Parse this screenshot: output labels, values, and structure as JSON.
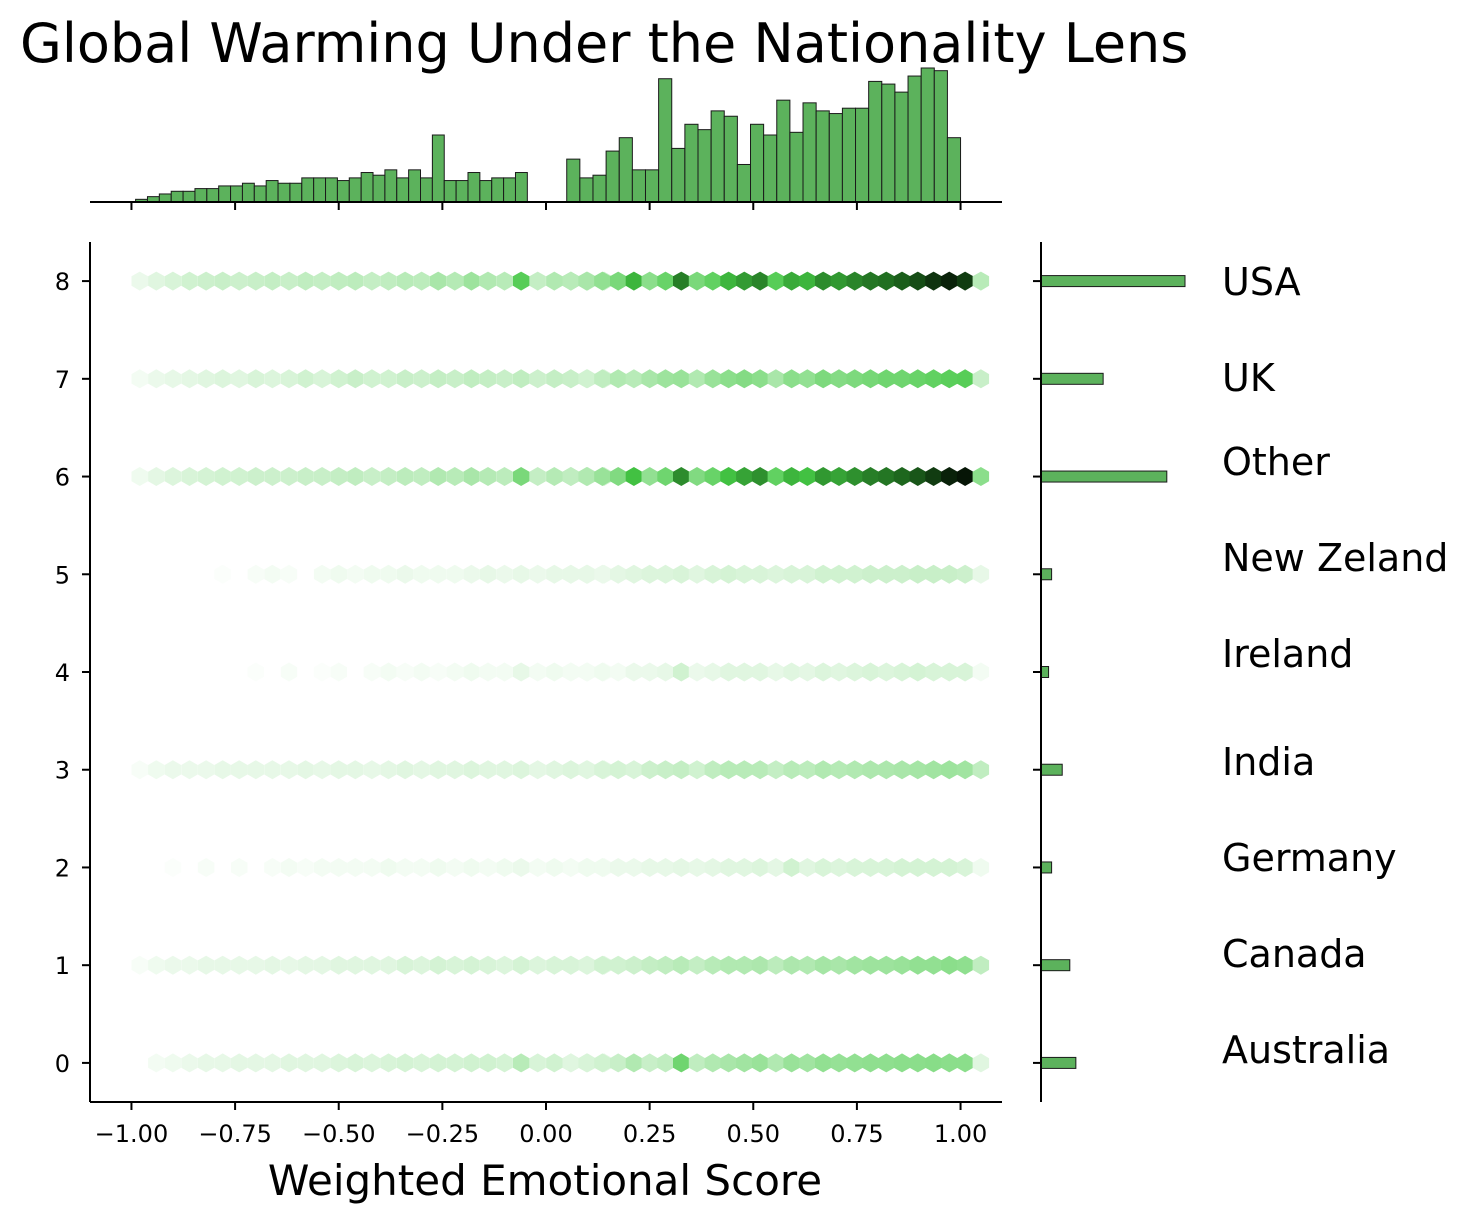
{
  "chart_data": {
    "type": "heatmap",
    "subtype": "jointplot-hexbin",
    "title": "Global Warming Under the Nationality Lens",
    "xlabel": "Weighted Emotional Score",
    "ylabel": "",
    "xlim": [
      -1.1,
      1.1
    ],
    "ylim": [
      -0.4,
      8.4
    ],
    "x_ticks": [
      -1.0,
      -0.75,
      -0.5,
      -0.25,
      0.0,
      0.25,
      0.5,
      0.75,
      1.0
    ],
    "x_tick_labels": [
      "−1.00",
      "−0.75",
      "−0.50",
      "−0.25",
      "0.00",
      "0.25",
      "0.50",
      "0.75",
      "1.00"
    ],
    "y_ticks": [
      0,
      1,
      2,
      3,
      4,
      5,
      6,
      7,
      8
    ],
    "y_tick_labels": [
      "0",
      "1",
      "2",
      "3",
      "4",
      "5",
      "6",
      "7",
      "8"
    ],
    "categories": [
      "Australia",
      "Canada",
      "Germany",
      "India",
      "Ireland",
      "New Zeland",
      "Other",
      "UK",
      "USA"
    ],
    "bar_color": "#5cb25c",
    "hex_color_scale": [
      "#ffffff",
      "#9de39d",
      "#45c845",
      "#1f6b1f",
      "#000000"
    ],
    "top_histogram": {
      "bins_negative": {
        "start": -0.99,
        "end": -0.045,
        "counts": [
          1,
          2,
          3,
          4,
          4,
          5,
          5,
          6,
          6,
          7,
          6,
          8,
          7,
          7,
          9,
          9,
          9,
          8,
          9,
          11,
          10,
          12,
          9,
          12,
          9,
          25,
          8,
          8,
          11,
          8,
          9,
          9,
          11
        ]
      },
      "bins_positive": {
        "start": 0.05,
        "end": 1.0,
        "counts": [
          16,
          9,
          10,
          19,
          24,
          12,
          12,
          46,
          20,
          29,
          27,
          34,
          32,
          14,
          29,
          25,
          38,
          26,
          37,
          34,
          33,
          35,
          35,
          45,
          44,
          41,
          47,
          50,
          49,
          24
        ]
      }
    },
    "right_histogram": {
      "categories": [
        "Australia",
        "Canada",
        "Germany",
        "India",
        "Ireland",
        "New Zeland",
        "Other",
        "UK",
        "USA"
      ],
      "values": [
        23,
        19,
        7,
        14,
        5,
        7,
        83,
        41,
        95
      ]
    },
    "hexbins": {
      "x_start": -0.98,
      "x_step": 0.04,
      "rows": [
        {
          "y": 8,
          "neg": [
            0.05,
            0.08,
            0.1,
            0.12,
            0.13,
            0.14,
            0.13,
            0.14,
            0.15,
            0.14,
            0.16,
            0.15,
            0.16,
            0.17,
            0.15,
            0.16,
            0.18,
            0.17,
            0.22,
            0.19,
            0.25,
            0.2,
            0.18,
            0.45,
            0.15,
            0.2,
            0.25,
            0.18,
            0.14
          ],
          "pos": [
            0.18,
            0.22,
            0.28,
            0.35,
            0.55,
            0.3,
            0.4,
            0.7,
            0.35,
            0.42,
            0.55,
            0.62,
            0.68,
            0.45,
            0.58,
            0.55,
            0.66,
            0.63,
            0.68,
            0.72,
            0.74,
            0.78,
            0.82,
            0.88,
            0.92,
            0.86,
            0.18
          ]
        },
        {
          "y": 7,
          "neg": [
            0.03,
            0.05,
            0.06,
            0.07,
            0.08,
            0.09,
            0.08,
            0.1,
            0.09,
            0.1,
            0.12,
            0.1,
            0.12,
            0.14,
            0.12,
            0.12,
            0.14,
            0.13,
            0.15,
            0.14,
            0.16,
            0.15,
            0.14,
            0.16,
            0.13,
            0.15,
            0.16,
            0.12,
            0.1
          ],
          "pos": [
            0.14,
            0.12,
            0.16,
            0.2,
            0.18,
            0.22,
            0.25,
            0.26,
            0.2,
            0.26,
            0.3,
            0.32,
            0.3,
            0.22,
            0.3,
            0.28,
            0.34,
            0.32,
            0.34,
            0.36,
            0.38,
            0.38,
            0.4,
            0.42,
            0.44,
            0.45,
            0.14
          ]
        },
        {
          "y": 6,
          "neg": [
            0.04,
            0.07,
            0.09,
            0.1,
            0.11,
            0.12,
            0.12,
            0.13,
            0.13,
            0.13,
            0.14,
            0.14,
            0.15,
            0.16,
            0.14,
            0.15,
            0.17,
            0.16,
            0.2,
            0.18,
            0.22,
            0.19,
            0.17,
            0.35,
            0.15,
            0.19,
            0.23,
            0.17,
            0.13
          ],
          "pos": [
            0.16,
            0.2,
            0.26,
            0.33,
            0.52,
            0.28,
            0.38,
            0.66,
            0.33,
            0.4,
            0.52,
            0.6,
            0.65,
            0.42,
            0.55,
            0.52,
            0.63,
            0.6,
            0.65,
            0.7,
            0.72,
            0.76,
            0.8,
            0.86,
            0.92,
            0.95,
            0.3
          ]
        },
        {
          "y": 5,
          "neg": [
            0.0,
            0.0,
            0.0,
            0.0,
            0.0,
            0.01,
            0.0,
            0.02,
            0.03,
            0.02,
            0.0,
            0.03,
            0.04,
            0.03,
            0.04,
            0.04,
            0.05,
            0.04,
            0.04,
            0.04,
            0.05,
            0.06,
            0.05,
            0.06,
            0.05,
            0.06,
            0.05,
            0.06,
            0.05
          ],
          "pos": [
            0.06,
            0.06,
            0.05,
            0.07,
            0.08,
            0.09,
            0.09,
            0.1,
            0.08,
            0.1,
            0.11,
            0.1,
            0.1,
            0.09,
            0.1,
            0.1,
            0.12,
            0.12,
            0.12,
            0.13,
            0.13,
            0.13,
            0.14,
            0.14,
            0.14,
            0.13,
            0.06
          ]
        },
        {
          "y": 4,
          "neg": [
            0.0,
            0.0,
            0.0,
            0.0,
            0.0,
            0.0,
            0.0,
            0.01,
            0.0,
            0.02,
            0.0,
            0.01,
            0.02,
            0.0,
            0.02,
            0.03,
            0.02,
            0.03,
            0.02,
            0.03,
            0.04,
            0.03,
            0.03,
            0.06,
            0.03,
            0.04,
            0.05,
            0.03,
            0.02
          ],
          "pos": [
            0.03,
            0.03,
            0.04,
            0.03,
            0.05,
            0.05,
            0.06,
            0.12,
            0.05,
            0.06,
            0.08,
            0.08,
            0.08,
            0.06,
            0.08,
            0.07,
            0.09,
            0.08,
            0.09,
            0.1,
            0.09,
            0.1,
            0.11,
            0.1,
            0.1,
            0.1,
            0.03
          ]
        },
        {
          "y": 3,
          "neg": [
            0.02,
            0.04,
            0.05,
            0.05,
            0.05,
            0.06,
            0.06,
            0.06,
            0.06,
            0.06,
            0.07,
            0.06,
            0.07,
            0.07,
            0.06,
            0.07,
            0.08,
            0.07,
            0.08,
            0.08,
            0.09,
            0.08,
            0.08,
            0.09,
            0.07,
            0.08,
            0.09,
            0.07,
            0.07
          ],
          "pos": [
            0.09,
            0.08,
            0.1,
            0.11,
            0.1,
            0.13,
            0.14,
            0.15,
            0.12,
            0.16,
            0.18,
            0.18,
            0.18,
            0.15,
            0.18,
            0.17,
            0.2,
            0.19,
            0.2,
            0.21,
            0.21,
            0.22,
            0.23,
            0.24,
            0.25,
            0.24,
            0.16
          ]
        },
        {
          "y": 2,
          "neg": [
            0.0,
            0.0,
            0.01,
            0.0,
            0.02,
            0.0,
            0.02,
            0.0,
            0.02,
            0.03,
            0.02,
            0.03,
            0.03,
            0.03,
            0.03,
            0.04,
            0.03,
            0.03,
            0.04,
            0.03,
            0.04,
            0.03,
            0.04,
            0.05,
            0.03,
            0.04,
            0.05,
            0.04,
            0.03
          ],
          "pos": [
            0.03,
            0.04,
            0.04,
            0.05,
            0.05,
            0.06,
            0.06,
            0.07,
            0.06,
            0.07,
            0.08,
            0.08,
            0.09,
            0.07,
            0.12,
            0.08,
            0.1,
            0.09,
            0.1,
            0.1,
            0.1,
            0.11,
            0.11,
            0.11,
            0.11,
            0.1,
            0.04
          ]
        },
        {
          "y": 1,
          "neg": [
            0.02,
            0.04,
            0.05,
            0.05,
            0.06,
            0.06,
            0.06,
            0.06,
            0.07,
            0.06,
            0.07,
            0.07,
            0.08,
            0.08,
            0.08,
            0.08,
            0.1,
            0.09,
            0.11,
            0.1,
            0.11,
            0.1,
            0.09,
            0.11,
            0.09,
            0.1,
            0.11,
            0.09,
            0.08
          ],
          "pos": [
            0.1,
            0.09,
            0.12,
            0.12,
            0.13,
            0.15,
            0.16,
            0.18,
            0.15,
            0.18,
            0.2,
            0.2,
            0.21,
            0.17,
            0.21,
            0.2,
            0.23,
            0.22,
            0.24,
            0.25,
            0.25,
            0.26,
            0.28,
            0.28,
            0.3,
            0.29,
            0.16
          ]
        },
        {
          "y": 0,
          "neg": [
            0.0,
            0.03,
            0.04,
            0.05,
            0.06,
            0.06,
            0.07,
            0.07,
            0.07,
            0.08,
            0.08,
            0.08,
            0.09,
            0.1,
            0.09,
            0.1,
            0.11,
            0.1,
            0.11,
            0.11,
            0.12,
            0.12,
            0.11,
            0.18,
            0.1,
            0.12,
            0.12,
            0.1,
            0.08
          ],
          "pos": [
            0.08,
            0.1,
            0.12,
            0.14,
            0.2,
            0.14,
            0.16,
            0.38,
            0.16,
            0.2,
            0.22,
            0.24,
            0.26,
            0.2,
            0.26,
            0.24,
            0.28,
            0.27,
            0.28,
            0.29,
            0.29,
            0.3,
            0.3,
            0.31,
            0.3,
            0.3,
            0.08
          ]
        }
      ]
    }
  }
}
